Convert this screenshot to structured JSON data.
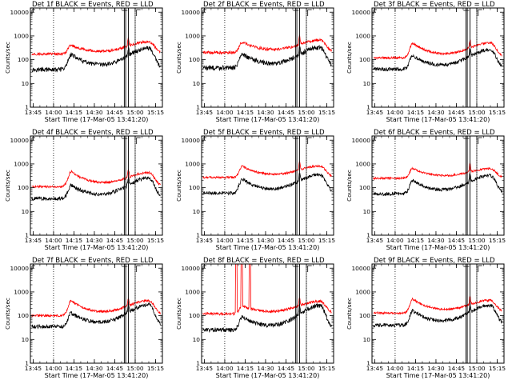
{
  "chart_data": {
    "type": "line",
    "y_scale": "log",
    "ylim": [
      1,
      15000
    ],
    "xlim": [
      "13:43",
      "15:20"
    ],
    "ylabel": "Counts/sec",
    "xlabel": "Start Time (17-Mar-05 13:41:20)",
    "y_tick_labels": [
      "1",
      "10",
      "100",
      "1000",
      "10000"
    ],
    "x_tick_labels": [
      "13:45",
      "14:00",
      "14:15",
      "14:30",
      "14:45",
      "15:00",
      "15:15"
    ],
    "series_colors": {
      "events": "#000000",
      "lld": "#ff0000"
    },
    "markers": {
      "F": "14:52",
      "F_end": "14:55",
      "E_start": "15:00",
      "E": "15:01",
      "dotted": [
        "14:00",
        "15:00"
      ]
    },
    "panels": [
      {
        "title": "Det 1f BLACK = Events, RED = LLD",
        "baseline_events": 38,
        "baseline_lld": 175,
        "peak1_events": 170,
        "peak1_lld": 400,
        "peak2_events": 300,
        "peak2_lld": 560,
        "noise": 0.18
      },
      {
        "title": "Det 2f BLACK = Events, RED = LLD",
        "baseline_events": 45,
        "baseline_lld": 200,
        "peak1_events": 180,
        "peak1_lld": 560,
        "peak2_events": 320,
        "peak2_lld": 650,
        "noise": 0.2
      },
      {
        "title": "Det 3f BLACK = Events, RED = LLD",
        "baseline_events": 40,
        "baseline_lld": 120,
        "peak1_events": 150,
        "peak1_lld": 500,
        "peak2_events": 260,
        "peak2_lld": 500,
        "noise": 0.15
      },
      {
        "title": "Det 4f BLACK = Events, RED = LLD",
        "baseline_events": 35,
        "baseline_lld": 110,
        "peak1_events": 130,
        "peak1_lld": 480,
        "peak2_events": 250,
        "peak2_lld": 420,
        "noise": 0.16
      },
      {
        "title": "Det 5f BLACK = Events, RED = LLD",
        "baseline_events": 60,
        "baseline_lld": 270,
        "peak1_events": 230,
        "peak1_lld": 800,
        "peak2_events": 350,
        "peak2_lld": 800,
        "noise": 0.14
      },
      {
        "title": "Det 6f BLACK = Events, RED = LLD",
        "baseline_events": 55,
        "baseline_lld": 250,
        "peak1_events": 200,
        "peak1_lld": 650,
        "peak2_events": 320,
        "peak2_lld": 620,
        "noise": 0.14
      },
      {
        "title": "Det 7f BLACK = Events, RED = LLD",
        "baseline_events": 35,
        "baseline_lld": 100,
        "peak1_events": 130,
        "peak1_lld": 420,
        "peak2_events": 280,
        "peak2_lld": 420,
        "noise": 0.16
      },
      {
        "title": "Det 8f BLACK = Events, RED = LLD",
        "baseline_events": 25,
        "baseline_lld": 120,
        "peak1_events": 90,
        "peak1_lld": 250,
        "peak2_events": 260,
        "peak2_lld": 400,
        "noise": 0.18,
        "spikes": [
          {
            "from": "14:08",
            "to": "14:09"
          },
          {
            "from": "14:12",
            "to": "14:13"
          },
          {
            "from": "14:18",
            "to": "14:19"
          }
        ]
      },
      {
        "title": "Det 9f BLACK = Events, RED = LLD",
        "baseline_events": 40,
        "baseline_lld": 130,
        "peak1_events": 160,
        "peak1_lld": 500,
        "peak2_events": 260,
        "peak2_lld": 430,
        "noise": 0.15
      }
    ]
  }
}
